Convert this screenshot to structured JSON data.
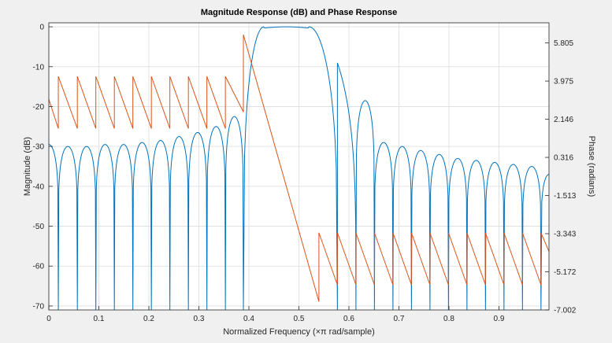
{
  "chart_data": {
    "type": "line",
    "title": "Magnitude Response (dB) and Phase Response",
    "xlabel": "Normalized Frequency (×π rad/sample)",
    "ylabel_left": "Magnitude (dB)",
    "ylabel_right": "Phase (radians)",
    "xlim": [
      0,
      1
    ],
    "ylim_left": [
      -71,
      1
    ],
    "ylim_right": [
      -7.002,
      6.77
    ],
    "x_ticks": [
      "0",
      "0.1",
      "0.2",
      "0.3",
      "0.4",
      "0.5",
      "0.6",
      "0.7",
      "0.8",
      "0.9"
    ],
    "y_ticks_left": [
      "0",
      "-10",
      "-20",
      "-30",
      "-40",
      "-50",
      "-60",
      "-70"
    ],
    "y_ticks_right": [
      "5.805",
      "3.975",
      "2.146",
      "0.316",
      "-1.513",
      "-3.343",
      "-5.172",
      "-7.002"
    ],
    "grid": true,
    "series": [
      {
        "color": "#0072bd",
        "axis": "left",
        "description": "magnitude in dB, bandpass passband 0.43-0.52, sidelobes between nulls",
        "nulls": [
          0.019,
          0.057,
          0.094,
          0.131,
          0.168,
          0.205,
          0.242,
          0.279,
          0.316,
          0.353,
          0.389,
          0.577,
          0.614,
          0.651,
          0.688,
          0.725,
          0.762,
          0.799,
          0.836,
          0.873,
          0.91,
          0.947,
          0.984
        ],
        "null_depth": -71,
        "sidelobe_peaks": [
          -29.5,
          -30,
          -30,
          -29.5,
          -29.5,
          -29,
          -28.5,
          -27.5,
          -26.5,
          -25,
          -22.5,
          -18.5,
          -29,
          -30,
          -31,
          -32,
          -33,
          -33.5,
          -34,
          -34.5,
          -35,
          -35.5,
          -36,
          -36.5,
          -37
        ]
      },
      {
        "color": "#d95319",
        "axis": "right",
        "description": "wrapped phase in radians",
        "points": [
          [
            0,
            3.1
          ],
          [
            0.019,
            1.7
          ],
          [
            0.019,
            4.2
          ],
          [
            0.057,
            1.7
          ],
          [
            0.057,
            4.2
          ],
          [
            0.094,
            1.7
          ],
          [
            0.094,
            4.2
          ],
          [
            0.131,
            1.7
          ],
          [
            0.131,
            4.2
          ],
          [
            0.168,
            1.7
          ],
          [
            0.168,
            4.2
          ],
          [
            0.205,
            1.7
          ],
          [
            0.205,
            4.2
          ],
          [
            0.242,
            1.7
          ],
          [
            0.242,
            4.2
          ],
          [
            0.279,
            1.7
          ],
          [
            0.279,
            4.2
          ],
          [
            0.316,
            1.7
          ],
          [
            0.316,
            4.2
          ],
          [
            0.353,
            1.7
          ],
          [
            0.353,
            4.2
          ],
          [
            0.389,
            2.5
          ],
          [
            0.389,
            6.2
          ],
          [
            0.54,
            -6.6
          ],
          [
            0.54,
            -3.3
          ],
          [
            0.577,
            -5.8
          ],
          [
            0.577,
            -3.3
          ],
          [
            0.614,
            -5.8
          ],
          [
            0.614,
            -3.3
          ],
          [
            0.651,
            -5.8
          ],
          [
            0.651,
            -3.3
          ],
          [
            0.688,
            -5.8
          ],
          [
            0.688,
            -3.3
          ],
          [
            0.725,
            -5.8
          ],
          [
            0.725,
            -3.3
          ],
          [
            0.762,
            -5.8
          ],
          [
            0.762,
            -3.3
          ],
          [
            0.799,
            -5.8
          ],
          [
            0.799,
            -3.3
          ],
          [
            0.836,
            -5.8
          ],
          [
            0.836,
            -3.3
          ],
          [
            0.873,
            -5.8
          ],
          [
            0.873,
            -3.3
          ],
          [
            0.91,
            -5.8
          ],
          [
            0.91,
            -3.3
          ],
          [
            0.947,
            -5.8
          ],
          [
            0.947,
            -3.3
          ],
          [
            0.984,
            -5.8
          ],
          [
            0.984,
            -3.3
          ],
          [
            1.0,
            -4.2
          ]
        ]
      }
    ]
  }
}
